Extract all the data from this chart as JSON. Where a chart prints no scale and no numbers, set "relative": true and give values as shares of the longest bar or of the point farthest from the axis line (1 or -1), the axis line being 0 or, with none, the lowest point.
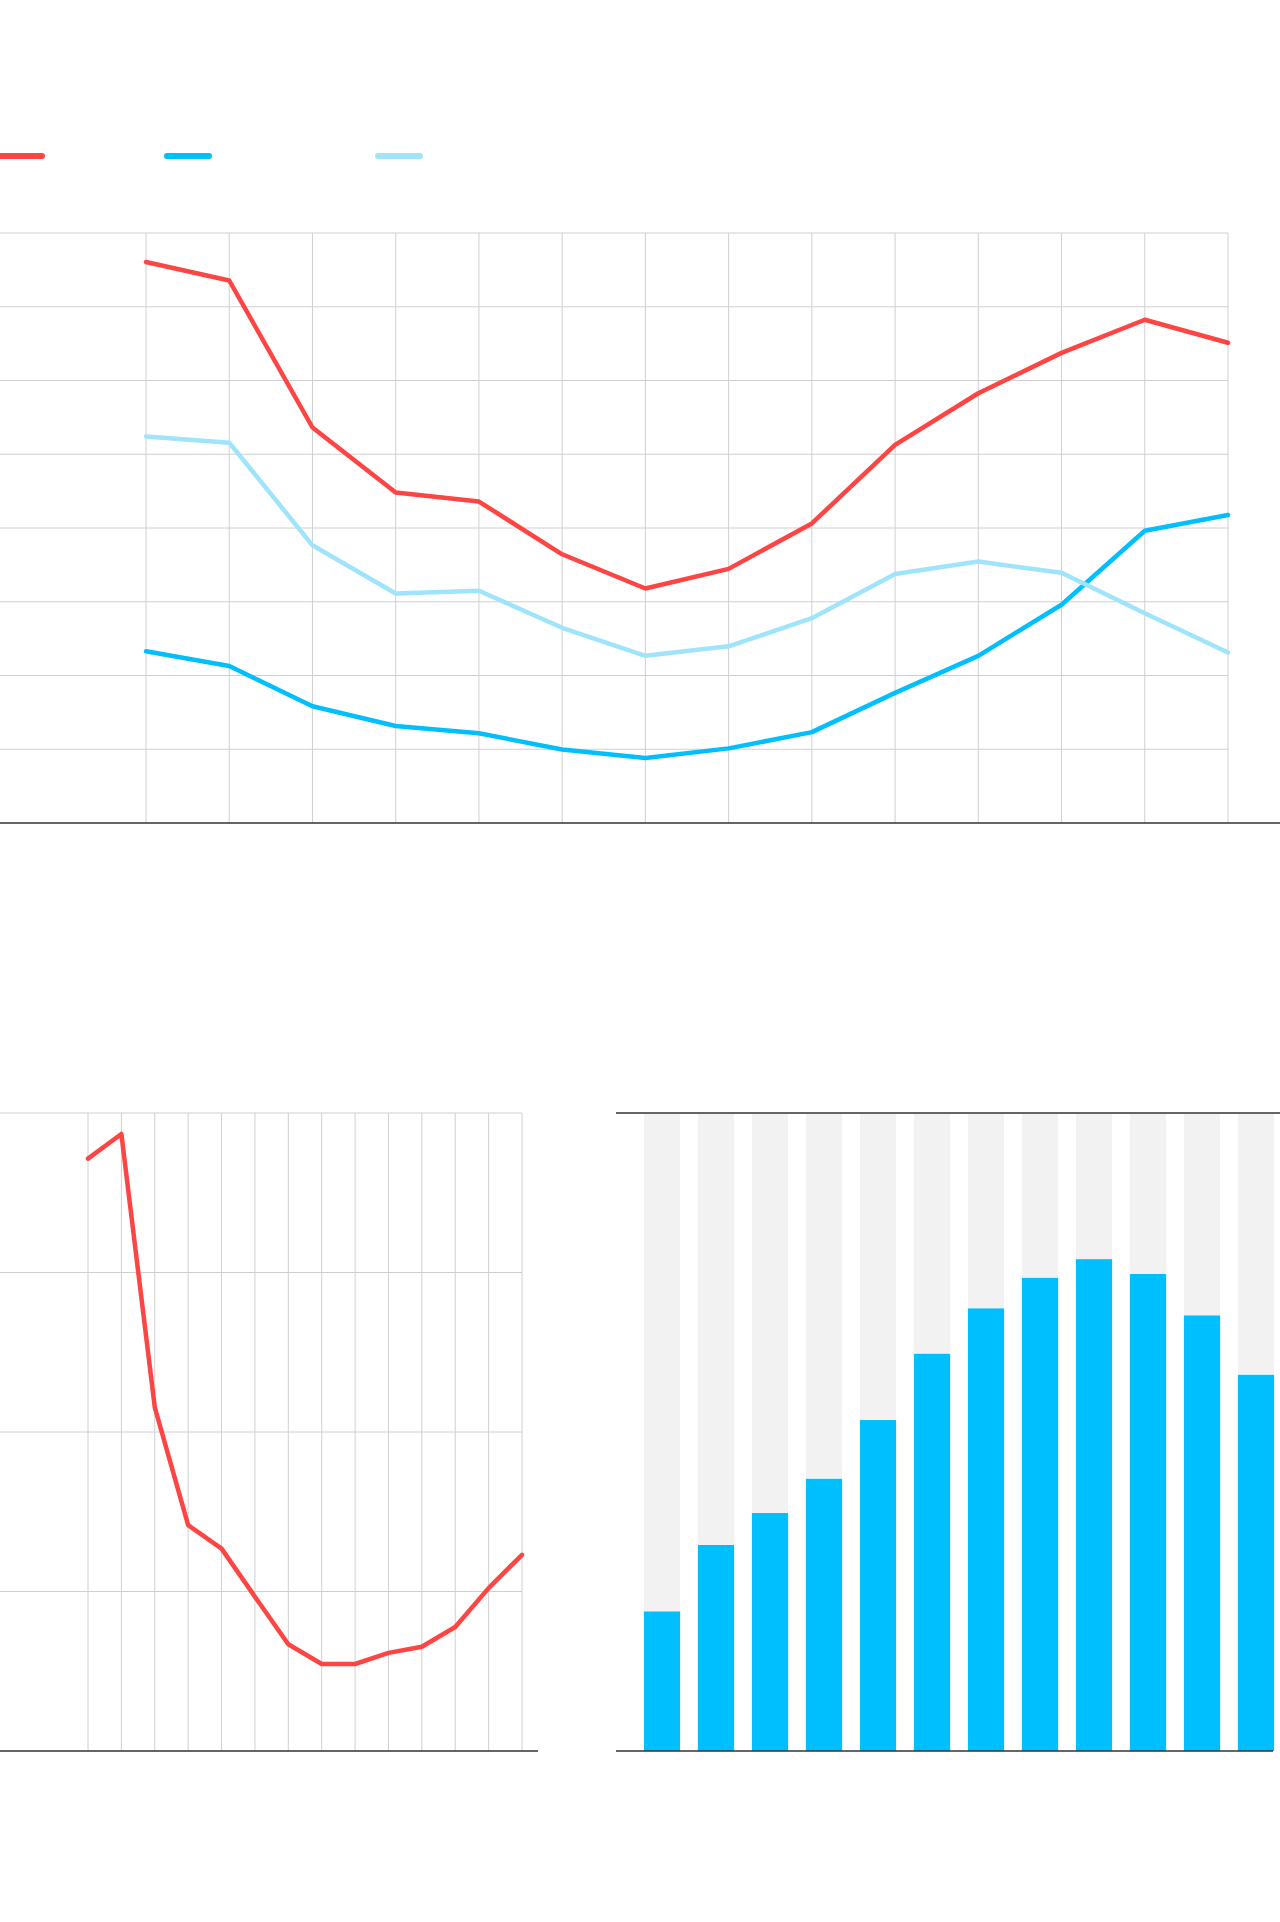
{
  "chart_data": [
    {
      "type": "line",
      "relative": true,
      "grid": true,
      "marker": "none",
      "line_style": "solid",
      "categories": [
        null,
        null,
        null,
        null,
        null,
        null,
        null,
        null,
        null,
        null,
        null,
        null,
        null,
        null
      ],
      "series": [
        {
          "color": "#ff4444",
          "values": [
            1,
            0.967,
            0.705,
            0.589,
            0.573,
            0.479,
            0.418,
            0.453,
            0.534,
            0.674,
            0.766,
            0.838,
            0.897,
            0.856
          ]
        },
        {
          "color": "#00bfff",
          "values": [
            0.306,
            0.28,
            0.208,
            0.173,
            0.16,
            0.131,
            0.116,
            0.133,
            0.162,
            0.232,
            0.298,
            0.389,
            0.521,
            0.549
          ]
        },
        {
          "color": "#a0e4fb",
          "values": [
            0.689,
            0.678,
            0.495,
            0.409,
            0.414,
            0.348,
            0.298,
            0.315,
            0.365,
            0.444,
            0.466,
            0.446,
            0.374,
            0.304
          ]
        }
      ]
    },
    {
      "type": "line",
      "relative": true,
      "grid": true,
      "marker": "none",
      "line_style": "solid",
      "categories": [
        null,
        null,
        null,
        null,
        null,
        null,
        null,
        null,
        null,
        null,
        null,
        null,
        null,
        null
      ],
      "series": [
        {
          "color": "#ff4444",
          "values": [
            0.96,
            1,
            0.557,
            0.366,
            0.328,
            0.25,
            0.173,
            0.141,
            0.141,
            0.159,
            0.169,
            0.201,
            0.264,
            0.318
          ]
        }
      ]
    },
    {
      "type": "bar",
      "relative": true,
      "stacked": true,
      "categories": [
        null,
        null,
        null,
        null,
        null,
        null,
        null,
        null,
        null,
        null,
        null,
        null
      ],
      "series": [
        {
          "color": "#00bfff",
          "values": [
            0.219,
            0.323,
            0.373,
            0.427,
            0.519,
            0.623,
            0.694,
            0.742,
            0.771,
            0.748,
            0.683,
            0.59
          ]
        },
        {
          "color": "#f2f2f2",
          "values": [
            0.781,
            0.677,
            0.627,
            0.573,
            0.481,
            0.377,
            0.306,
            0.258,
            0.229,
            0.252,
            0.317,
            0.41
          ]
        }
      ]
    }
  ]
}
